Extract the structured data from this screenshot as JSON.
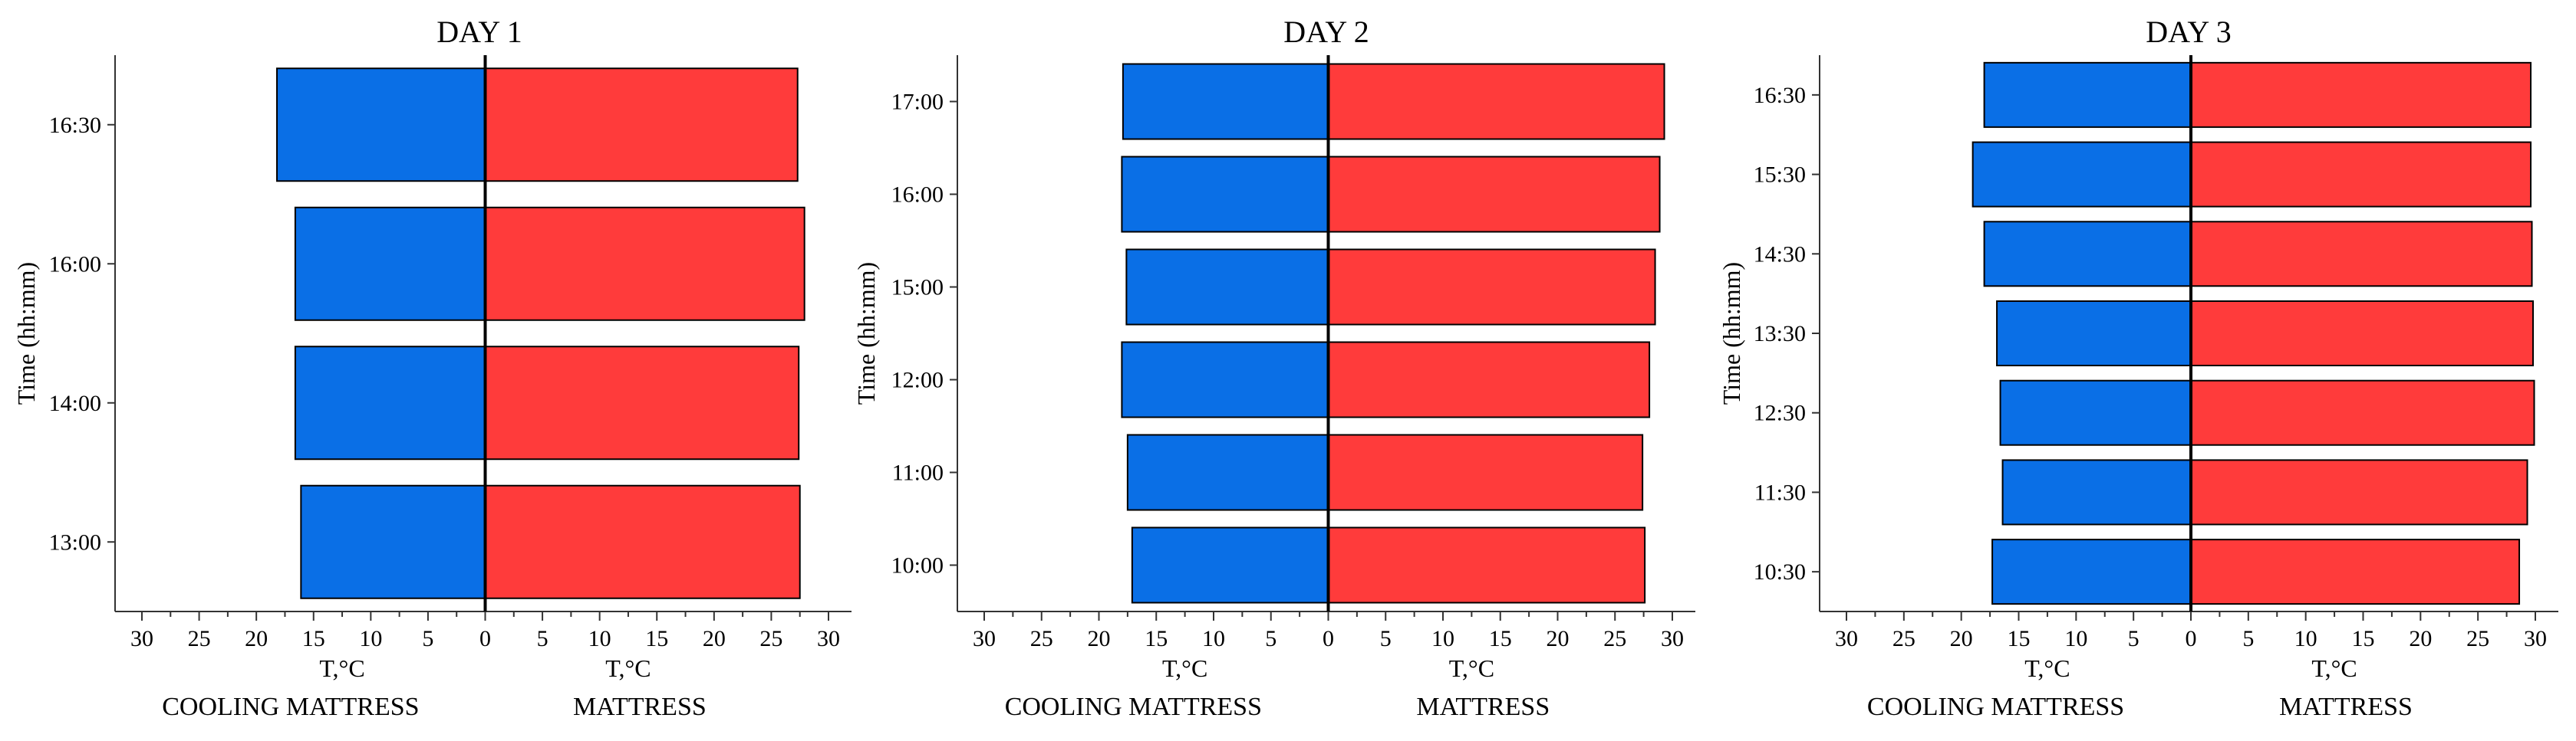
{
  "colors": {
    "left_bar": "#0A6FE6",
    "right_bar": "#FF3B3B",
    "axis": "#333333",
    "center_line": "#000000"
  },
  "chart_data": [
    {
      "type": "bar",
      "orientation": "horizontal-diverging",
      "title": "DAY 1",
      "ylabel": "Time (hh:mm)",
      "categories": [
        "13:00",
        "14:00",
        "16:00",
        "16:30"
      ],
      "xlim": [
        -30,
        30
      ],
      "x_ticks": [
        "30",
        "25",
        "20",
        "15",
        "10",
        "5",
        "0",
        "5",
        "10",
        "15",
        "20",
        "25",
        "30"
      ],
      "left_xlabel": "T,°C",
      "right_xlabel": "T,°C",
      "left_label": "COOLING MATTRESS",
      "right_label": "MATTRESS",
      "series": [
        {
          "name": "COOLING MATTRESS",
          "side": "left",
          "values": [
            16.1,
            16.6,
            16.6,
            18.2
          ]
        },
        {
          "name": "MATTRESS",
          "side": "right",
          "values": [
            27.5,
            27.4,
            27.9,
            27.3
          ]
        }
      ]
    },
    {
      "type": "bar",
      "orientation": "horizontal-diverging",
      "title": "DAY 2",
      "ylabel": "Time (hh:mm)",
      "categories": [
        "10:00",
        "11:00",
        "12:00",
        "15:00",
        "16:00",
        "17:00"
      ],
      "xlim": [
        -30,
        30
      ],
      "x_ticks": [
        "30",
        "25",
        "20",
        "15",
        "10",
        "5",
        "0",
        "5",
        "10",
        "15",
        "20",
        "25",
        "30"
      ],
      "left_xlabel": "T,°C",
      "right_xlabel": "T,°C",
      "left_label": "COOLING MATTRESS",
      "right_label": "MATTRESS",
      "series": [
        {
          "name": "COOLING MATTRESS",
          "side": "left",
          "values": [
            17.1,
            17.5,
            18.0,
            17.6,
            18.0,
            17.9
          ]
        },
        {
          "name": "MATTRESS",
          "side": "right",
          "values": [
            27.6,
            27.4,
            28.0,
            28.5,
            28.9,
            29.3
          ]
        }
      ]
    },
    {
      "type": "bar",
      "orientation": "horizontal-diverging",
      "title": "DAY 3",
      "ylabel": "Time (hh:mm)",
      "categories": [
        "10:30",
        "11:30",
        "12:30",
        "13:30",
        "14:30",
        "15:30",
        "16:30"
      ],
      "xlim": [
        -30,
        30
      ],
      "x_ticks": [
        "30",
        "25",
        "20",
        "15",
        "10",
        "5",
        "0",
        "5",
        "10",
        "15",
        "20",
        "25",
        "30"
      ],
      "left_xlabel": "T,°C",
      "right_xlabel": "T,°C",
      "left_label": "COOLING MATTRESS",
      "right_label": "MATTRESS",
      "series": [
        {
          "name": "COOLING MATTRESS",
          "side": "left",
          "values": [
            17.3,
            16.4,
            16.6,
            16.9,
            18.0,
            19.0,
            18.0
          ]
        },
        {
          "name": "MATTRESS",
          "side": "right",
          "values": [
            28.6,
            29.3,
            29.9,
            29.8,
            29.7,
            29.6,
            29.6
          ]
        }
      ]
    }
  ]
}
